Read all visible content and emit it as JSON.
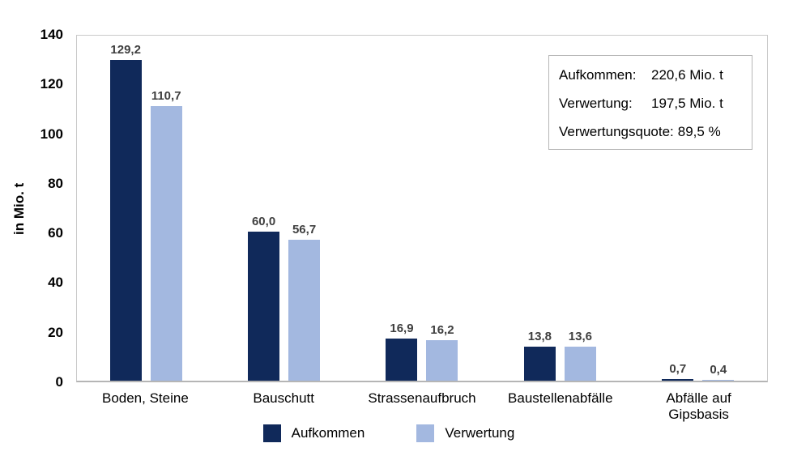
{
  "chart_data": {
    "type": "bar",
    "categories": [
      "Boden, Steine",
      "Bauschutt",
      "Strassenaufbruch",
      "Baustellenabfälle",
      "Abfälle auf\nGipsbasis"
    ],
    "series": [
      {
        "name": "Aufkommen",
        "color": "#10295a",
        "values": [
          129.2,
          60.0,
          16.9,
          13.8,
          0.7
        ],
        "labels": [
          "129,2",
          "60,0",
          "16,9",
          "13,8",
          "0,7"
        ]
      },
      {
        "name": "Verwertung",
        "color": "#a3b8e0",
        "values": [
          110.7,
          56.7,
          16.2,
          13.6,
          0.4
        ],
        "labels": [
          "110,7",
          "56,7",
          "16,2",
          "13,6",
          "0,4"
        ]
      }
    ],
    "ylabel": "in Mio. t",
    "xlabel": "",
    "title": "",
    "ylim": [
      0,
      140
    ],
    "yticks": [
      0,
      20,
      40,
      60,
      80,
      100,
      120,
      140
    ],
    "grid": false,
    "legend_position": "bottom"
  },
  "info_box": {
    "rows": [
      {
        "label": "Aufkommen:",
        "value": "220,6 Mio. t"
      },
      {
        "label": "Verwertung:",
        "value": "197,5 Mio. t"
      },
      {
        "label": "Verwertungsquote:",
        "value": "89,5 %"
      }
    ]
  }
}
